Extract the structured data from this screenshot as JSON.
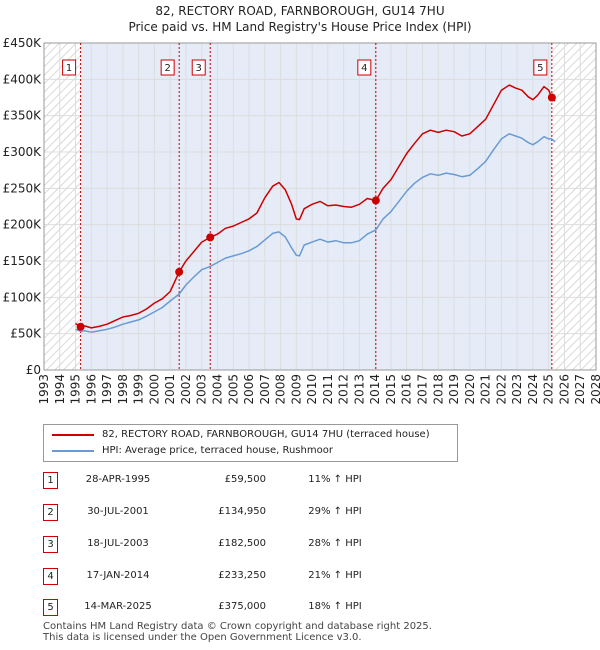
{
  "colors": {
    "price_line": "#cc0000",
    "hpi_line": "#6a9ad4",
    "shade": "#e5ecf8",
    "grid": "#dddddd"
  },
  "chart_data": {
    "type": "line",
    "title": "82, RECTORY ROAD, FARNBOROUGH, GU14 7HU",
    "subtitle": "Price paid vs. HM Land Registry's House Price Index (HPI)",
    "xlim": [
      1993,
      2028
    ],
    "ylim": [
      0,
      450000
    ],
    "x_ticks": [
      "1993",
      "1994",
      "1995",
      "1996",
      "1997",
      "1998",
      "1999",
      "2000",
      "2001",
      "2002",
      "2003",
      "2004",
      "2005",
      "2006",
      "2007",
      "2008",
      "2009",
      "2010",
      "2011",
      "2012",
      "2013",
      "2014",
      "2015",
      "2016",
      "2017",
      "2018",
      "2019",
      "2020",
      "2021",
      "2022",
      "2023",
      "2024",
      "2025",
      "2026",
      "2027",
      "2028"
    ],
    "y_ticks": [
      "£0",
      "£50K",
      "£100K",
      "£150K",
      "£200K",
      "£250K",
      "£300K",
      "£350K",
      "£400K",
      "£450K"
    ],
    "y_tick_values": [
      0,
      50000,
      100000,
      150000,
      200000,
      250000,
      300000,
      350000,
      400000,
      450000
    ],
    "grid": true,
    "shaded_spans": [
      [
        1995.33,
        2025.2
      ]
    ],
    "hatched_spans": [
      [
        1993,
        1995.33
      ],
      [
        2025.2,
        2028
      ]
    ],
    "series": [
      {
        "name": "82, RECTORY ROAD, FARNBOROUGH, GU14 7HU (terraced house)",
        "color": "#cc0000",
        "x": [
          1995.0,
          1995.32,
          1995.6,
          1996.0,
          1996.5,
          1997.0,
          1997.5,
          1998.0,
          1998.5,
          1999.0,
          1999.5,
          2000.0,
          2000.5,
          2001.0,
          2001.57,
          2002.0,
          2002.5,
          2003.0,
          2003.54,
          2004.0,
          2004.5,
          2005.0,
          2005.5,
          2006.0,
          2006.5,
          2007.0,
          2007.5,
          2007.9,
          2008.3,
          2008.7,
          2009.0,
          2009.2,
          2009.5,
          2010.0,
          2010.5,
          2011.0,
          2011.5,
          2012.0,
          2012.5,
          2013.0,
          2013.5,
          2014.04,
          2014.5,
          2015.0,
          2015.5,
          2016.0,
          2016.5,
          2017.0,
          2017.5,
          2018.0,
          2018.5,
          2019.0,
          2019.5,
          2020.0,
          2020.5,
          2021.0,
          2021.5,
          2022.0,
          2022.5,
          2022.9,
          2023.3,
          2023.7,
          2024.0,
          2024.3,
          2024.7,
          2025.0,
          2025.2,
          2025.4
        ],
        "values": [
          64000,
          59500,
          60500,
          58000,
          60000,
          63000,
          68000,
          73000,
          75000,
          78000,
          84000,
          92000,
          98000,
          108000,
          134950,
          150000,
          163000,
          176000,
          182500,
          187000,
          195000,
          198000,
          203000,
          208000,
          216000,
          237000,
          253000,
          258000,
          248000,
          228000,
          208000,
          207000,
          222000,
          228000,
          232000,
          226000,
          227000,
          225000,
          224000,
          228000,
          236000,
          233250,
          250000,
          262000,
          280000,
          298000,
          312000,
          325000,
          330000,
          327000,
          330000,
          328000,
          322000,
          325000,
          335000,
          345000,
          365000,
          385000,
          392000,
          388000,
          385000,
          376000,
          372000,
          378000,
          390000,
          385000,
          375000,
          370000
        ]
      },
      {
        "name": "HPI: Average price, terraced house, Rushmoor",
        "color": "#6a9ad4",
        "x": [
          1995.0,
          1995.32,
          1995.6,
          1996.0,
          1996.5,
          1997.0,
          1997.5,
          1998.0,
          1998.5,
          1999.0,
          1999.5,
          2000.0,
          2000.5,
          2001.0,
          2001.57,
          2002.0,
          2002.5,
          2003.0,
          2003.54,
          2004.0,
          2004.5,
          2005.0,
          2005.5,
          2006.0,
          2006.5,
          2007.0,
          2007.5,
          2007.9,
          2008.3,
          2008.7,
          2009.0,
          2009.2,
          2009.5,
          2010.0,
          2010.5,
          2011.0,
          2011.5,
          2012.0,
          2012.5,
          2013.0,
          2013.5,
          2014.04,
          2014.5,
          2015.0,
          2015.5,
          2016.0,
          2016.5,
          2017.0,
          2017.5,
          2018.0,
          2018.5,
          2019.0,
          2019.5,
          2020.0,
          2020.5,
          2021.0,
          2021.5,
          2022.0,
          2022.5,
          2022.9,
          2023.3,
          2023.7,
          2024.0,
          2024.3,
          2024.7,
          2025.0,
          2025.2,
          2025.4
        ],
        "values": [
          56000,
          53300,
          54000,
          52000,
          54000,
          56000,
          59000,
          63000,
          66000,
          69000,
          74000,
          80000,
          86000,
          95000,
          104600,
          117000,
          128000,
          138000,
          142600,
          148000,
          154000,
          157000,
          160000,
          164000,
          170000,
          179000,
          188000,
          190000,
          183000,
          168000,
          158000,
          157000,
          172000,
          176000,
          180000,
          176000,
          178000,
          175000,
          175000,
          178000,
          187000,
          192800,
          208000,
          218000,
          232000,
          246000,
          257000,
          265000,
          270000,
          268000,
          271000,
          269000,
          266000,
          268000,
          277000,
          287000,
          303000,
          318000,
          325000,
          322000,
          319000,
          313000,
          310000,
          314000,
          321000,
          318000,
          318000,
          314000
        ]
      }
    ],
    "markers": [
      {
        "label": "1",
        "x": 1995.32,
        "value": 59500
      },
      {
        "label": "2",
        "x": 2001.57,
        "value": 134950
      },
      {
        "label": "3",
        "x": 2003.54,
        "value": 182500
      },
      {
        "label": "4",
        "x": 2014.04,
        "value": 233250
      },
      {
        "label": "5",
        "x": 2025.2,
        "value": 375000
      }
    ],
    "legend": [
      {
        "label": "82, RECTORY ROAD, FARNBOROUGH, GU14 7HU (terraced house)",
        "color": "#cc0000"
      },
      {
        "label": "HPI: Average price, terraced house, Rushmoor",
        "color": "#6a9ad4"
      }
    ]
  },
  "sales": [
    {
      "num": "1",
      "date": "28-APR-1995",
      "price": "£59,500",
      "hpi": "11% ↑ HPI"
    },
    {
      "num": "2",
      "date": "30-JUL-2001",
      "price": "£134,950",
      "hpi": "29% ↑ HPI"
    },
    {
      "num": "3",
      "date": "18-JUL-2003",
      "price": "£182,500",
      "hpi": "28% ↑ HPI"
    },
    {
      "num": "4",
      "date": "17-JAN-2014",
      "price": "£233,250",
      "hpi": "21% ↑ HPI"
    },
    {
      "num": "5",
      "date": "14-MAR-2025",
      "price": "£375,000",
      "hpi": "18% ↑ HPI"
    }
  ],
  "footer": {
    "line1": "Contains HM Land Registry data © Crown copyright and database right 2025.",
    "line2": "This data is licensed under the Open Government Licence v3.0."
  }
}
